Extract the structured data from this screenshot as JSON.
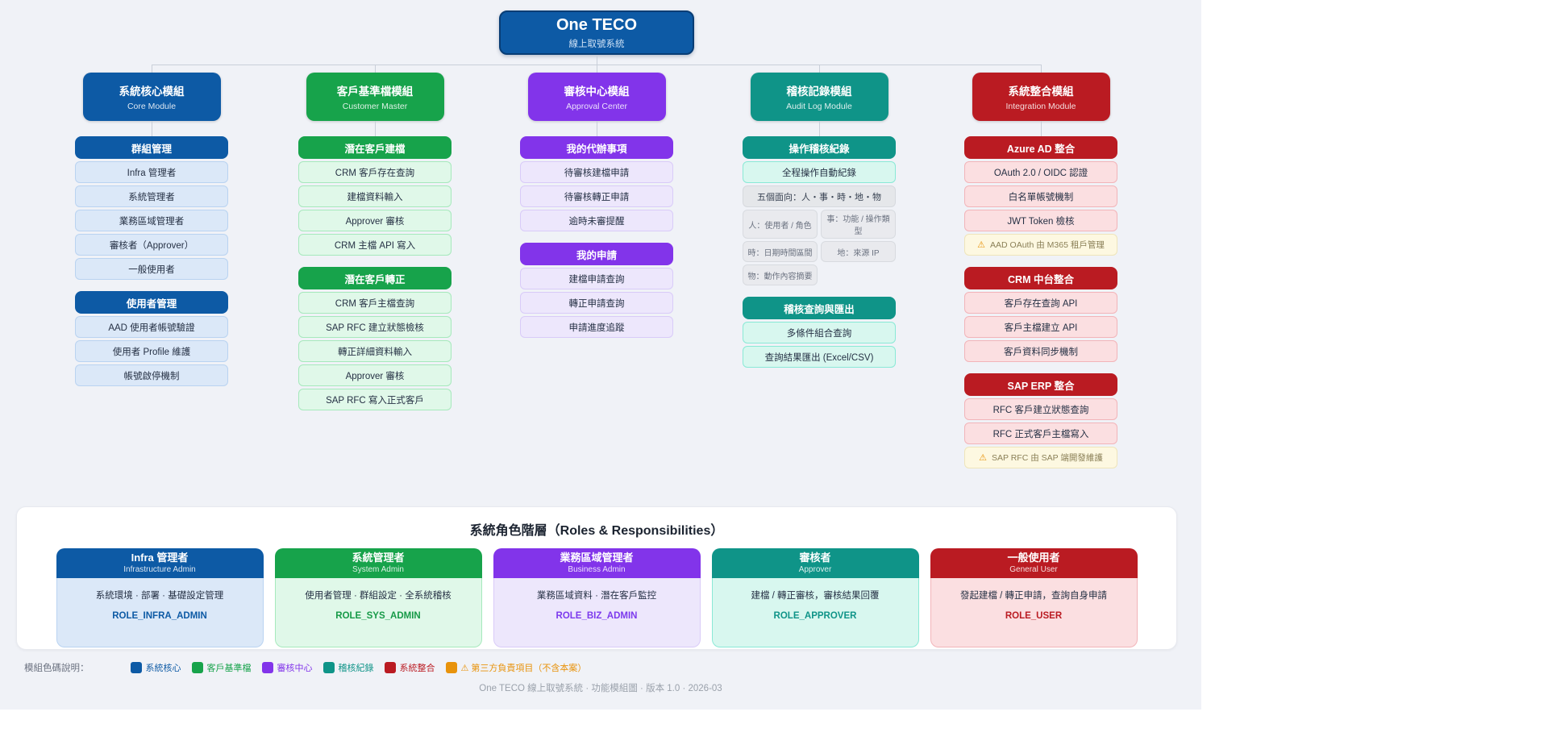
{
  "root_node": {
    "title": "One TECO",
    "subtitle": "線上取號系統"
  },
  "modules": [
    {
      "theme": "blue",
      "color": "#0d5aa5",
      "title": "系統核心模組",
      "subtitle": "Core Module",
      "sections": [
        {
          "header": "群組管理",
          "items": [
            {
              "text": "Infra 管理者"
            },
            {
              "text": "系統管理者"
            },
            {
              "text": "業務區域管理者"
            },
            {
              "text": "審核者（Approver）"
            },
            {
              "text": "一般使用者"
            }
          ]
        },
        {
          "header": "使用者管理",
          "items": [
            {
              "text": "AAD 使用者帳號驗證"
            },
            {
              "text": "使用者 Profile 維護"
            },
            {
              "text": "帳號啟停機制"
            }
          ]
        }
      ]
    },
    {
      "theme": "green",
      "color": "#17a34b",
      "title": "客戶基準檔模組",
      "subtitle": "Customer Master",
      "sections": [
        {
          "header": "潛在客戶建檔",
          "items": [
            {
              "text": "CRM 客戶存在查詢"
            },
            {
              "text": "建檔資料輸入"
            },
            {
              "text": "Approver 審核"
            },
            {
              "text": "CRM 主檔 API 寫入"
            }
          ]
        },
        {
          "header": "潛在客戶轉正",
          "items": [
            {
              "text": "CRM 客戶主檔查詢"
            },
            {
              "text": "SAP RFC 建立狀態檢核"
            },
            {
              "text": "轉正詳細資料輸入"
            },
            {
              "text": "Approver 審核"
            },
            {
              "text": "SAP RFC 寫入正式客戶"
            }
          ]
        }
      ]
    },
    {
      "theme": "purple",
      "color": "#8234ea",
      "title": "審核中心模組",
      "subtitle": "Approval Center",
      "sections": [
        {
          "header": "我的代辦事項",
          "items": [
            {
              "text": "待審核建檔申請"
            },
            {
              "text": "待審核轉正申請"
            },
            {
              "text": "逾時未審提醒"
            }
          ]
        },
        {
          "header": "我的申請",
          "items": [
            {
              "text": "建檔申請查詢"
            },
            {
              "text": "轉正申請查詢"
            },
            {
              "text": "申請進度追蹤"
            }
          ]
        }
      ]
    },
    {
      "theme": "teal",
      "color": "#0f9488",
      "title": "稽核記錄模組",
      "subtitle": "Audit Log Module",
      "sections": [
        {
          "header": "操作稽核紀錄",
          "items": [
            {
              "text": "全程操作自動紀錄",
              "variant": "mint"
            },
            {
              "text": "五個面向：人・事・時・地・物",
              "variant": "gray"
            },
            {
              "text": "人：使用者 / 角色",
              "variant": "gray-half"
            },
            {
              "text": "事：功能 / 操作類型",
              "variant": "gray-half"
            },
            {
              "text": "時：日期時間區間",
              "variant": "gray-half"
            },
            {
              "text": "地：來源 IP",
              "variant": "gray-half"
            },
            {
              "text": "物：動作內容摘要",
              "variant": "gray-half"
            }
          ]
        },
        {
          "header": "稽核查詢與匯出",
          "items": [
            {
              "text": "多條件組合查詢",
              "variant": "mint"
            },
            {
              "text": "查詢結果匯出 (Excel/CSV)",
              "variant": "mint"
            }
          ]
        }
      ]
    },
    {
      "theme": "red",
      "color": "#ba1b22",
      "title": "系統整合模組",
      "subtitle": "Integration Module",
      "sections": [
        {
          "header": "Azure AD 整合",
          "items": [
            {
              "text": "OAuth 2.0 / OIDC 認證"
            },
            {
              "text": "白名單帳號機制"
            },
            {
              "text": "JWT Token 檢核"
            },
            {
              "text": "AAD OAuth 由 M365 租戶管理",
              "variant": "warn",
              "icon": "warning-icon"
            }
          ]
        },
        {
          "header": "CRM 中台整合",
          "items": [
            {
              "text": "客戶存在查詢 API"
            },
            {
              "text": "客戶主檔建立 API"
            },
            {
              "text": "客戶資料同步機制"
            }
          ]
        },
        {
          "header": "SAP ERP 整合",
          "items": [
            {
              "text": "RFC 客戶建立狀態查詢"
            },
            {
              "text": "RFC 正式客戶主檔寫入"
            },
            {
              "text": "SAP RFC 由 SAP 端開發維護",
              "variant": "warn",
              "icon": "warning-icon"
            }
          ]
        }
      ]
    }
  ],
  "roles_panel": {
    "title": "系統角色階層（Roles & Responsibilities）",
    "roles": [
      {
        "theme": "blue",
        "name": "Infra 管理者",
        "subtitle": "Infrastructure Admin",
        "description": "系統環境 · 部署 · 基礎設定管理",
        "code": "ROLE_INFRA_ADMIN"
      },
      {
        "theme": "green",
        "name": "系統管理者",
        "subtitle": "System Admin",
        "description": "使用者管理 · 群組設定 · 全系統稽核",
        "code": "ROLE_SYS_ADMIN"
      },
      {
        "theme": "purple",
        "name": "業務區域管理者",
        "subtitle": "Business Admin",
        "description": "業務區域資料 · 潛在客戶監控",
        "code": "ROLE_BIZ_ADMIN"
      },
      {
        "theme": "teal",
        "name": "審核者",
        "subtitle": "Approver",
        "description": "建檔 / 轉正審核，審核結果回覆",
        "code": "ROLE_APPROVER"
      },
      {
        "theme": "red",
        "name": "一般使用者",
        "subtitle": "General User",
        "description": "發起建檔 / 轉正申請，查詢自身申請",
        "code": "ROLE_USER"
      }
    ]
  },
  "legend": {
    "label": "模組色碼說明：",
    "items": [
      {
        "label": "系統核心",
        "color": "#0d5aa5"
      },
      {
        "label": "客戶基準檔",
        "color": "#17a34b"
      },
      {
        "label": "審核中心",
        "color": "#8234ea"
      },
      {
        "label": "稽核紀錄",
        "color": "#0f9488"
      },
      {
        "label": "系統整合",
        "color": "#ba1b22"
      },
      {
        "label": "⚠ 第三方負責項目（不含本案）",
        "color": "#e8930c"
      }
    ]
  },
  "footer": {
    "caption": "One TECO 線上取號系統 · 功能模組圖 · 版本 1.0 · 2026-03"
  }
}
